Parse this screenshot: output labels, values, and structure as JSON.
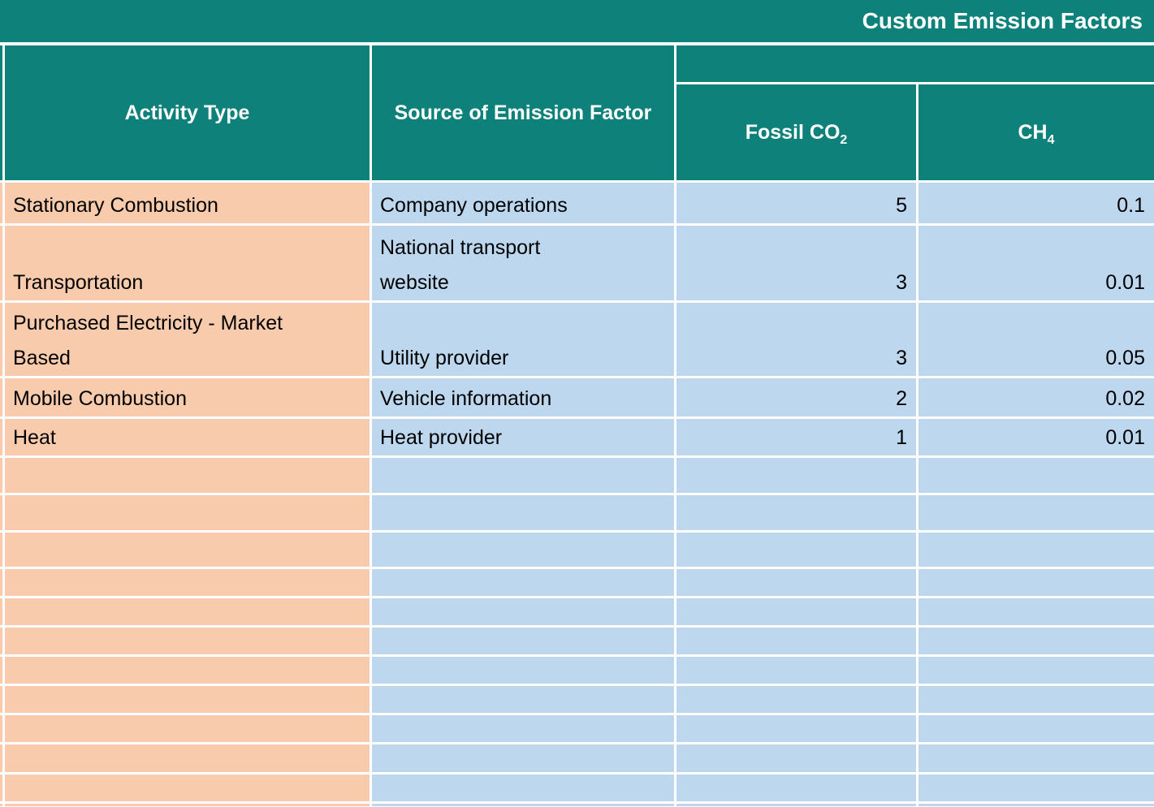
{
  "title": "Custom Emission Factors",
  "colors": {
    "header_teal": "#0E817A",
    "activity_fill_peach": "#F8CBAD",
    "value_fill_blue": "#BDD7EE",
    "gridline_white": "#FFFFFF",
    "header_text_white": "#FFFFFF",
    "body_text_black": "#000000"
  },
  "table": {
    "headers": {
      "activity_type": "Activity Type",
      "source": "Source of Emission Factor",
      "fossil_co2": {
        "text": "Fossil CO",
        "sub": "2"
      },
      "ch4": {
        "text": "CH",
        "sub": "4"
      }
    },
    "rows": [
      {
        "activity": "Stationary Combustion",
        "source": "Company operations",
        "fossil_co2": "5",
        "ch4": "0.1"
      },
      {
        "activity": "Transportation",
        "source": "National transport\nwebsite",
        "fossil_co2": "3",
        "ch4": "0.01"
      },
      {
        "activity": "Purchased Electricity - Market\nBased",
        "source": "Utility provider",
        "fossil_co2": "3",
        "ch4": "0.05"
      },
      {
        "activity": "Mobile Combustion",
        "source": "Vehicle information",
        "fossil_co2": "2",
        "ch4": "0.02"
      },
      {
        "activity": "Heat",
        "source": "Heat provider",
        "fossil_co2": "1",
        "ch4": "0.01"
      }
    ],
    "empty_row_count": 12
  }
}
